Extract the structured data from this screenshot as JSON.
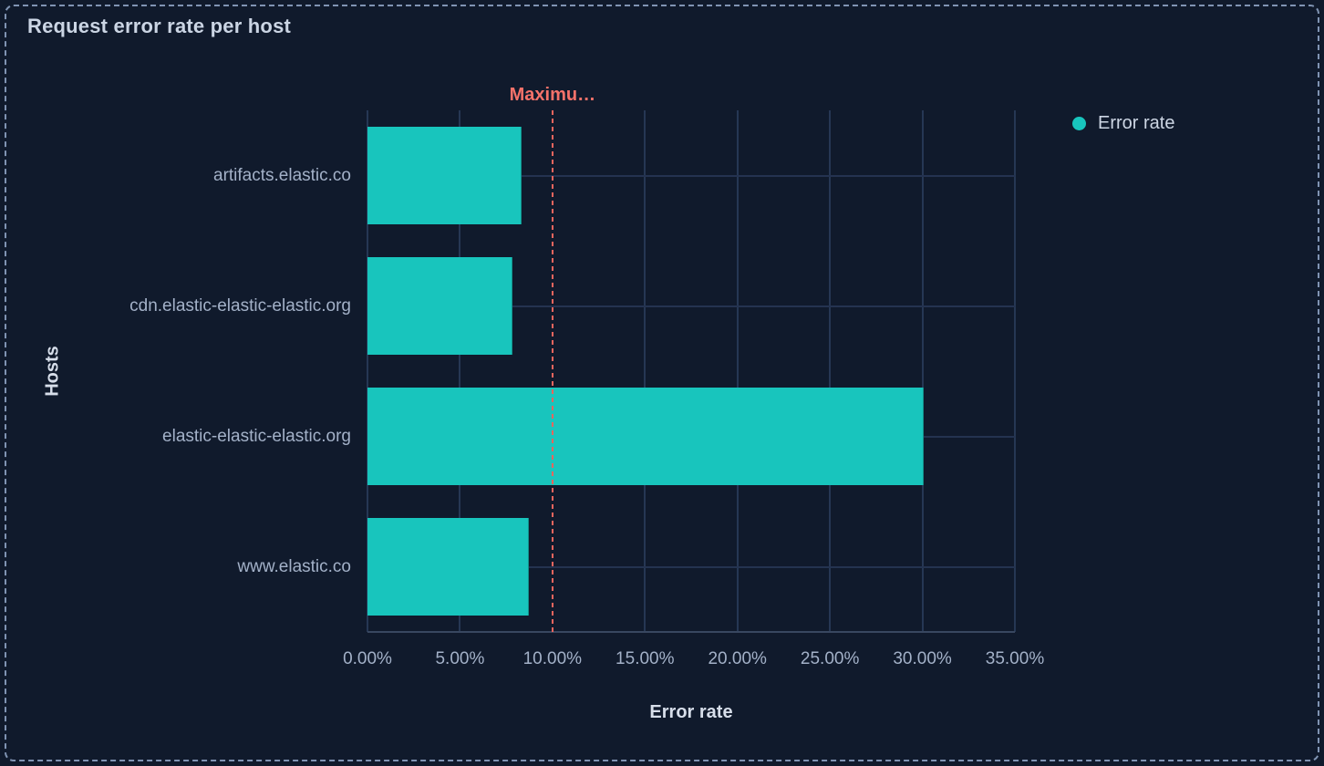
{
  "panel": {
    "title": "Request error rate per host"
  },
  "legend": {
    "position": "top-right",
    "items": [
      {
        "label": "Error rate",
        "color": "#18C5BD"
      }
    ]
  },
  "chart_data": {
    "type": "bar",
    "orientation": "horizontal",
    "title": "Request error rate per host",
    "categories": [
      "artifacts.elastic.co",
      "cdn.elastic-elastic-elastic.org",
      "elastic-elastic-elastic.org",
      "www.elastic.co"
    ],
    "series": [
      {
        "name": "Error rate",
        "values": [
          8.3,
          7.8,
          30.0,
          8.7
        ],
        "unit": "%"
      }
    ],
    "xlabel": "Error rate",
    "ylabel": "Hosts",
    "xlim": [
      0,
      35
    ],
    "x_ticks": [
      {
        "value": 0,
        "label": "0.00%"
      },
      {
        "value": 5,
        "label": "5.00%"
      },
      {
        "value": 10,
        "label": "10.00%"
      },
      {
        "value": 15,
        "label": "15.00%"
      },
      {
        "value": 20,
        "label": "20.00%"
      },
      {
        "value": 25,
        "label": "25.00%"
      },
      {
        "value": 30,
        "label": "30.00%"
      },
      {
        "value": 35,
        "label": "35.00%"
      }
    ],
    "grid": true,
    "legend_position": "right",
    "annotation": {
      "label": "Maximu…",
      "value": 10,
      "color": "#F6726A",
      "style": "dashed"
    }
  },
  "colors": {
    "background": "#101A2C",
    "panel_border": "#8094B3",
    "bar": "#18C5BD",
    "annotation": "#F6726A",
    "gridline": "#263754",
    "axis_line": "#384760",
    "title_text": "#CBD5E4",
    "tick_text": "#A3B1C8",
    "axis_title_text": "#D7DEEA",
    "legend_text": "#CDD6E4"
  }
}
